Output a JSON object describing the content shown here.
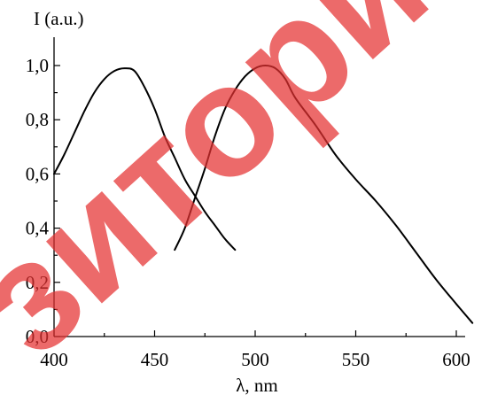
{
  "watermark": {
    "text": "зитори",
    "color": "#e53030"
  },
  "chart_data": {
    "type": "line",
    "title": "",
    "xlabel": "λ, nm",
    "ylabel": "I (a.u.)",
    "xlim": [
      400,
      610
    ],
    "ylim": [
      0,
      1.05
    ],
    "x_ticks": [
      400,
      450,
      500,
      550,
      600
    ],
    "x_tick_labels": [
      "400",
      "450",
      "500",
      "550",
      "600"
    ],
    "y_ticks": [
      0,
      0.2,
      0.4,
      0.6,
      0.8,
      1.0
    ],
    "y_tick_labels": [
      "0,0",
      "0,2",
      "0,4",
      "0,6",
      "0,8",
      "1,0"
    ],
    "grid": false,
    "legend": "none",
    "series": [
      {
        "points": [
          [
            400,
            0.6
          ],
          [
            405,
            0.67
          ],
          [
            410,
            0.75
          ],
          [
            415,
            0.83
          ],
          [
            420,
            0.9
          ],
          [
            425,
            0.95
          ],
          [
            430,
            0.98
          ],
          [
            435,
            0.99
          ],
          [
            440,
            0.98
          ],
          [
            445,
            0.92
          ],
          [
            450,
            0.84
          ],
          [
            455,
            0.74
          ],
          [
            460,
            0.66
          ],
          [
            465,
            0.58
          ],
          [
            470,
            0.52
          ],
          [
            475,
            0.46
          ],
          [
            480,
            0.41
          ],
          [
            485,
            0.36
          ],
          [
            490,
            0.32
          ]
        ]
      },
      {
        "points": [
          [
            460,
            0.32
          ],
          [
            465,
            0.4
          ],
          [
            470,
            0.51
          ],
          [
            475,
            0.62
          ],
          [
            480,
            0.74
          ],
          [
            485,
            0.84
          ],
          [
            490,
            0.91
          ],
          [
            495,
            0.96
          ],
          [
            500,
            0.99
          ],
          [
            505,
            1.0
          ],
          [
            510,
            0.99
          ],
          [
            515,
            0.95
          ],
          [
            520,
            0.88
          ],
          [
            530,
            0.78
          ],
          [
            540,
            0.67
          ],
          [
            550,
            0.58
          ],
          [
            560,
            0.5
          ],
          [
            570,
            0.41
          ],
          [
            580,
            0.31
          ],
          [
            590,
            0.21
          ],
          [
            600,
            0.12
          ],
          [
            608,
            0.05
          ]
        ]
      }
    ]
  }
}
